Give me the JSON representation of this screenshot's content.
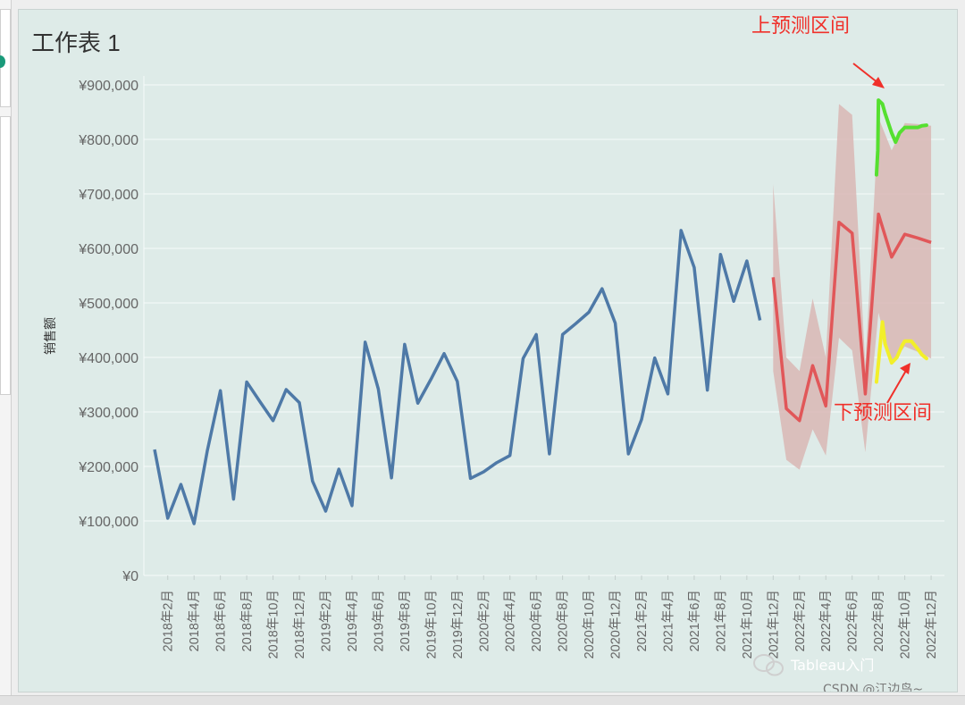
{
  "sheet": {
    "title": "工作表 1"
  },
  "chart_data": {
    "type": "line",
    "title": "工作表 1",
    "ylabel": "销售额",
    "xlabel": "",
    "ylim": [
      0,
      900000
    ],
    "y_ticks": [
      0,
      100000,
      200000,
      300000,
      400000,
      500000,
      600000,
      700000,
      800000,
      900000
    ],
    "y_tick_labels": [
      "¥0",
      "¥100,000",
      "¥200,000",
      "¥300,000",
      "¥400,000",
      "¥500,000",
      "¥600,000",
      "¥700,000",
      "¥800,000",
      "¥900,000"
    ],
    "x_tick_labels": [
      "2018年2月",
      "2018年4月",
      "2018年6月",
      "2018年8月",
      "2018年10月",
      "2018年12月",
      "2019年2月",
      "2019年4月",
      "2019年6月",
      "2019年8月",
      "2019年10月",
      "2019年12月",
      "2020年2月",
      "2020年4月",
      "2020年6月",
      "2020年8月",
      "2020年10月",
      "2020年12月",
      "2021年2月",
      "2021年4月",
      "2021年6月",
      "2021年8月",
      "2021年10月",
      "2021年12月",
      "2022年2月",
      "2022年4月",
      "2022年6月",
      "2022年8月",
      "2022年10月",
      "2022年12月"
    ],
    "grid": true,
    "colors": {
      "actual": "#4e79a7",
      "forecast": "#e15759",
      "band": "#d9b7b4",
      "upper": "#55e030",
      "lower": "#f2ef2a"
    },
    "series": [
      {
        "key": "actual",
        "start_month": "2018年1月",
        "values": [
          231000,
          105000,
          167000,
          95000,
          228000,
          339000,
          140000,
          355000,
          319000,
          284000,
          341000,
          317000,
          173000,
          118000,
          195000,
          128000,
          428000,
          342000,
          179000,
          424000,
          316000,
          360000,
          407000,
          356000,
          178000,
          190000,
          207000,
          220000,
          398000,
          442000,
          223000,
          442000,
          462000,
          483000,
          526000,
          463000,
          223000,
          286000,
          399000,
          333000,
          633000,
          565000,
          340000,
          589000,
          503000,
          577000,
          468000
        ]
      },
      {
        "key": "forecast",
        "start_month": "2021年12月",
        "values": [
          547000,
          306000,
          284000,
          385000,
          311000,
          648000,
          628000,
          333000,
          663000,
          584000,
          626000,
          619000,
          611000
        ]
      }
    ],
    "prediction_interval": {
      "start_month": "2021年12月",
      "upper": [
        718000,
        400000,
        375000,
        508000,
        400000,
        865000,
        845000,
        385000,
        840000,
        780000,
        830000,
        828000,
        825000
      ],
      "lower": [
        375000,
        212000,
        194000,
        268000,
        220000,
        436000,
        413000,
        226000,
        482000,
        388000,
        420000,
        410000,
        398000
      ]
    },
    "highlight_upper": {
      "months": [
        7.85,
        7.95,
        8.0,
        8.3,
        8.5,
        9.0,
        9.3,
        9.6,
        10.0,
        10.5,
        11.0,
        11.3,
        11.65
      ],
      "values": [
        735000,
        780000,
        872000,
        865000,
        848000,
        812000,
        795000,
        812000,
        822000,
        822000,
        822000,
        825000,
        826000
      ]
    },
    "highlight_lower": {
      "months": [
        7.85,
        8.0,
        8.3,
        8.5,
        9.0,
        9.4,
        9.8,
        10.0,
        10.5,
        11.0,
        11.3,
        11.65
      ],
      "values": [
        355000,
        390000,
        465000,
        425000,
        390000,
        400000,
        422000,
        430000,
        430000,
        415000,
        405000,
        398000
      ]
    },
    "annotations": [
      {
        "key": "upper",
        "text": "上预测区间"
      },
      {
        "key": "lower",
        "text": "下预测区间"
      }
    ]
  },
  "watermark": {
    "line1": "Tableau入门",
    "line2": "CSDN @江边鸟~"
  }
}
